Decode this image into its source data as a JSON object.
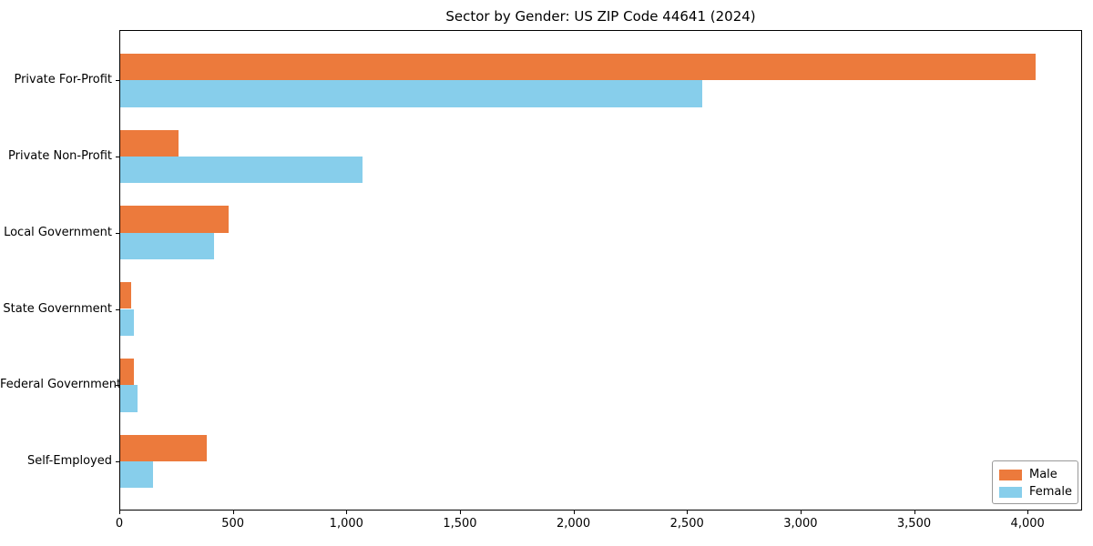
{
  "chart_data": {
    "type": "bar",
    "orientation": "horizontal",
    "title": "Sector by Gender: US ZIP Code 44641 (2024)",
    "categories": [
      "Private For-Profit",
      "Private Non-Profit",
      "Local Government",
      "State Government",
      "Federal Government",
      "Self-Employed"
    ],
    "series": [
      {
        "name": "Male",
        "color": "#EC7A3C",
        "values": [
          4030,
          258,
          477,
          49,
          61,
          381
        ]
      },
      {
        "name": "Female",
        "color": "#87CEEB",
        "values": [
          2565,
          1066,
          414,
          61,
          77,
          146
        ]
      }
    ],
    "xlabel": "",
    "ylabel": "",
    "xlim": [
      0,
      4240
    ],
    "x_ticks": [
      0,
      500,
      1000,
      1500,
      2000,
      2500,
      3000,
      3500,
      4000
    ],
    "x_tick_labels": [
      "0",
      "500",
      "1,000",
      "1,500",
      "2,000",
      "2,500",
      "3,000",
      "3,500",
      "4,000"
    ],
    "grid": false,
    "legend": {
      "position": "lower right",
      "entries": [
        "Male",
        "Female"
      ]
    }
  }
}
